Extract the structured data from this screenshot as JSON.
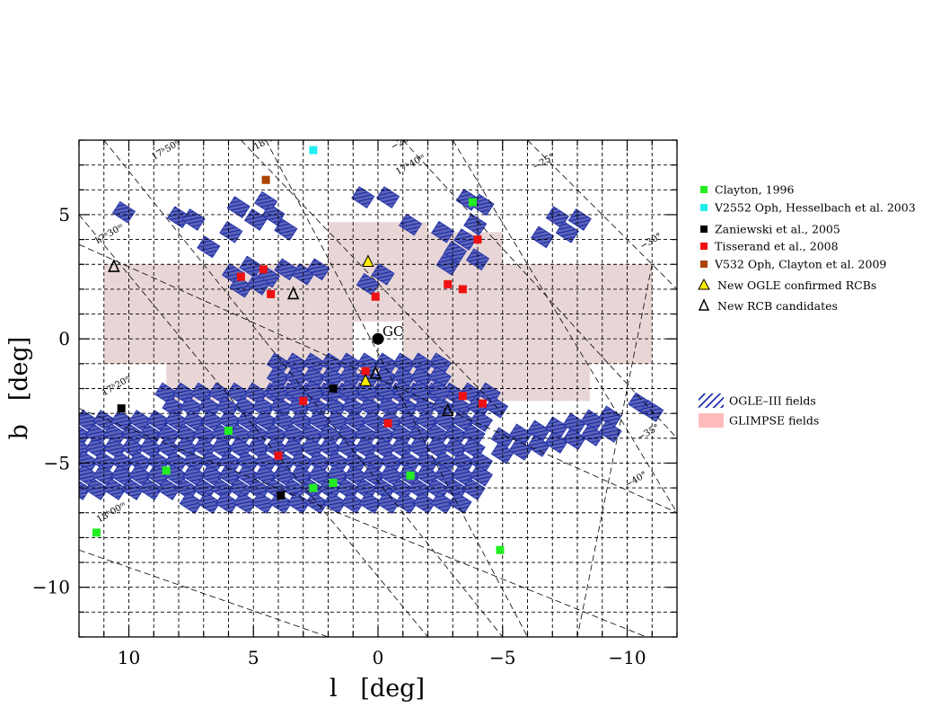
{
  "chart_data": {
    "type": "scatter",
    "xlabel": "l   [deg]",
    "ylabel": "b   [deg]",
    "xlim": [
      12,
      -12
    ],
    "ylim": [
      -12,
      8
    ],
    "x_reversed": true,
    "x_ticks": [
      10,
      5,
      0,
      -5,
      -10
    ],
    "x_tick_labels": [
      "10",
      "5",
      "0",
      "−5",
      "−10"
    ],
    "y_ticks": [
      5,
      0,
      -5,
      -10
    ],
    "y_tick_labels": [
      "5",
      "0",
      "−5",
      "−10"
    ],
    "grid": true,
    "legend_position": "right",
    "center_marker": {
      "label": "GC",
      "l": 0,
      "b": 0
    },
    "equatorial_grid_labels": [
      "17ʰ50ᵐ",
      "17ʰ40ᵐ",
      "17ʰ30ᵐ",
      "17ʰ20ᵐ",
      "18ʰ00ᵐ",
      "18ʰ10ᵐ",
      "−20°",
      "−25°",
      "−30°",
      "−35°",
      "−40°"
    ],
    "series": [
      {
        "name": "Clayton, 1996",
        "marker": "square",
        "color": "#22ee22",
        "points": [
          [
            -3.8,
            5.5
          ],
          [
            6.0,
            -3.7
          ],
          [
            8.5,
            -5.3
          ],
          [
            -1.3,
            -5.5
          ],
          [
            1.8,
            -5.8
          ],
          [
            2.6,
            -6.0
          ],
          [
            11.3,
            -7.8
          ],
          [
            -4.9,
            -8.5
          ]
        ]
      },
      {
        "name": "V2552 Oph, Hesselbach et al. 2003",
        "marker": "square",
        "color": "#22eeee",
        "points": [
          [
            2.6,
            7.6
          ]
        ]
      },
      {
        "name": "Zaniewski et al., 2005",
        "marker": "square",
        "color": "#000000",
        "points": [
          [
            10.3,
            -2.8
          ],
          [
            1.8,
            -2.0
          ],
          [
            3.9,
            -6.3
          ]
        ]
      },
      {
        "name": "Tisserand et al., 2008",
        "marker": "square",
        "color": "#ee1111",
        "points": [
          [
            -4.0,
            4.0
          ],
          [
            4.6,
            2.8
          ],
          [
            5.5,
            2.5
          ],
          [
            4.3,
            1.8
          ],
          [
            0.1,
            1.7
          ],
          [
            -2.8,
            2.2
          ],
          [
            -3.4,
            2.0
          ],
          [
            0.5,
            -1.3
          ],
          [
            3.0,
            -2.5
          ],
          [
            -3.4,
            -2.3
          ],
          [
            -4.2,
            -2.6
          ],
          [
            -0.4,
            -3.4
          ],
          [
            4.0,
            -4.7
          ]
        ]
      },
      {
        "name": "V532 Oph, Clayton et al. 2009",
        "marker": "square",
        "color": "#aa4400",
        "points": [
          [
            4.5,
            6.4
          ]
        ]
      },
      {
        "name": "New OGLE confirmed RCBs",
        "marker": "triangle-filled",
        "color": "#ffee00",
        "points": [
          [
            0.4,
            3.1
          ],
          [
            0.5,
            -1.7
          ]
        ]
      },
      {
        "name": "New RCB candidates",
        "marker": "triangle-open",
        "color": "#000000",
        "points": [
          [
            10.6,
            2.9
          ],
          [
            3.4,
            1.8
          ],
          [
            0.1,
            -1.4
          ],
          [
            -2.8,
            -2.9
          ]
        ]
      }
    ],
    "regions": [
      {
        "name": "OGLE–III fields",
        "color": "#1a2aaa"
      },
      {
        "name": "GLIMPSE fields",
        "color": "#ffbbbb"
      }
    ]
  }
}
